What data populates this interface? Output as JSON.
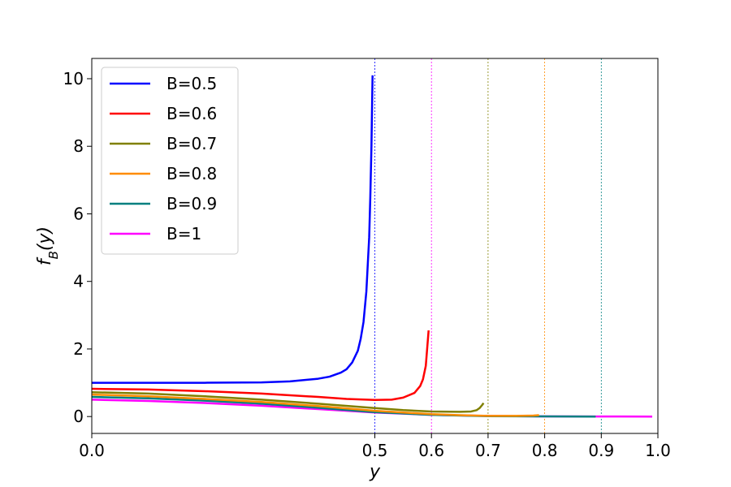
{
  "chart_data": {
    "type": "line",
    "title": "",
    "xlabel": "y",
    "ylabel": "f_B(y)",
    "xlim": [
      0.0,
      1.0
    ],
    "ylim": [
      -0.5,
      10.6
    ],
    "xticks": [
      0.0,
      0.5,
      0.6,
      0.7,
      0.8,
      0.9,
      1.0
    ],
    "xtick_labels": [
      "0.0",
      "0.5",
      "0.6",
      "0.7",
      "0.8",
      "0.9",
      "1.0"
    ],
    "yticks": [
      0,
      2,
      4,
      6,
      8,
      10
    ],
    "ytick_labels": [
      "0",
      "2",
      "4",
      "6",
      "8",
      "10"
    ],
    "grid": false,
    "legend_position": "top-left",
    "vertical_lines": [
      {
        "x": 0.5,
        "color": "#0000ff"
      },
      {
        "x": 0.6,
        "color": "#ff00ff"
      },
      {
        "x": 0.7,
        "color": "#808000"
      },
      {
        "x": 0.8,
        "color": "#ff8c00"
      },
      {
        "x": 0.9,
        "color": "#008080"
      }
    ],
    "series": [
      {
        "name": "B=0.5",
        "color": "#0000ff",
        "x": [
          0.0,
          0.1,
          0.2,
          0.3,
          0.35,
          0.4,
          0.42,
          0.44,
          0.45,
          0.46,
          0.47,
          0.475,
          0.48,
          0.485,
          0.49,
          0.492,
          0.494,
          0.496
        ],
        "y": [
          1.0,
          1.0,
          1.0,
          1.01,
          1.04,
          1.12,
          1.18,
          1.3,
          1.4,
          1.6,
          1.95,
          2.3,
          2.8,
          3.7,
          5.3,
          6.5,
          8.0,
          10.1
        ]
      },
      {
        "name": "B=0.6",
        "color": "#ff0000",
        "x": [
          0.0,
          0.1,
          0.2,
          0.3,
          0.4,
          0.45,
          0.5,
          0.53,
          0.55,
          0.57,
          0.58,
          0.585,
          0.59,
          0.595
        ],
        "y": [
          0.82,
          0.8,
          0.75,
          0.68,
          0.58,
          0.52,
          0.49,
          0.5,
          0.56,
          0.7,
          0.9,
          1.1,
          1.5,
          2.55
        ]
      },
      {
        "name": "B=0.7",
        "color": "#808000",
        "x": [
          0.0,
          0.1,
          0.2,
          0.3,
          0.4,
          0.5,
          0.55,
          0.6,
          0.65,
          0.67,
          0.68,
          0.685,
          0.69,
          0.692
        ],
        "y": [
          0.72,
          0.68,
          0.6,
          0.5,
          0.38,
          0.25,
          0.19,
          0.15,
          0.14,
          0.15,
          0.19,
          0.25,
          0.35,
          0.4
        ]
      },
      {
        "name": "B=0.8",
        "color": "#ff8c00",
        "x": [
          0.0,
          0.1,
          0.2,
          0.3,
          0.4,
          0.5,
          0.6,
          0.65,
          0.7,
          0.75,
          0.78,
          0.79
        ],
        "y": [
          0.65,
          0.6,
          0.52,
          0.43,
          0.31,
          0.17,
          0.07,
          0.04,
          0.02,
          0.02,
          0.03,
          0.04
        ]
      },
      {
        "name": "B=0.9",
        "color": "#008080",
        "x": [
          0.0,
          0.1,
          0.2,
          0.3,
          0.4,
          0.5,
          0.6,
          0.7,
          0.8,
          0.89
        ],
        "y": [
          0.58,
          0.54,
          0.47,
          0.38,
          0.26,
          0.13,
          0.05,
          0.01,
          0.005,
          0.0
        ]
      },
      {
        "name": "B=1",
        "color": "#ff00ff",
        "x": [
          0.0,
          0.1,
          0.2,
          0.3,
          0.4,
          0.5,
          0.6,
          0.7,
          0.8,
          0.9,
          0.99
        ],
        "y": [
          0.5,
          0.46,
          0.4,
          0.32,
          0.22,
          0.12,
          0.05,
          0.015,
          0.004,
          0.001,
          0.0
        ]
      }
    ]
  }
}
